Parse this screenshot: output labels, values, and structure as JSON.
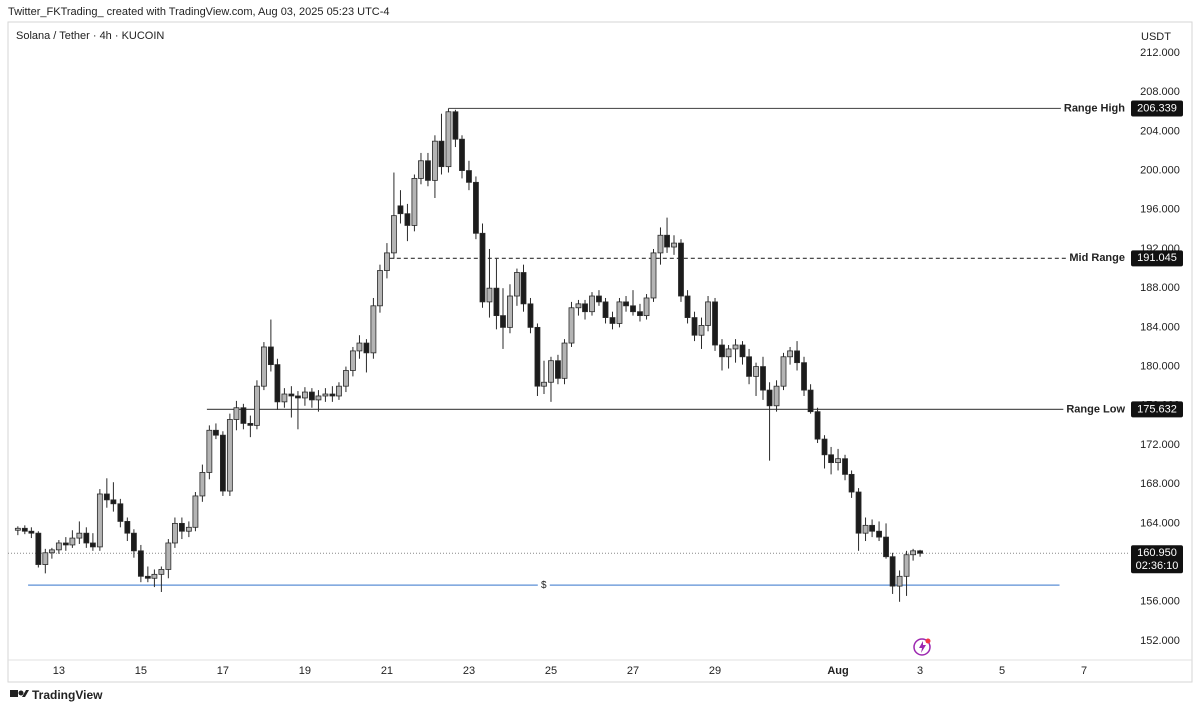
{
  "header": "Twitter_FKTrading_ created with TradingView.com, Aug 03, 2025 05:23 UTC-4",
  "footer": "TradingView",
  "chart_data": {
    "type": "candlestick",
    "title": "Solana / Tether · 4h · KUCOIN",
    "y_unit": "USDT",
    "xlim": [
      11.76,
      39.07
    ],
    "ylim": [
      150.06,
      215.16
    ],
    "grid": false,
    "up_color": "#b4b4b4",
    "down_color": "#1c1c1c",
    "wick_color": "#2a2a2a",
    "xticks": [
      13,
      15,
      17,
      19,
      21,
      23,
      25,
      27,
      29,
      {
        "value": 32,
        "label": "Aug"
      },
      {
        "value": 34,
        "label": "3"
      },
      {
        "value": 36,
        "label": "5"
      },
      {
        "value": 38,
        "label": "7"
      }
    ],
    "yticks": [
      {
        "value": 212,
        "label": "212.000"
      },
      {
        "value": 208,
        "label": "208.000"
      },
      {
        "value": 204,
        "label": "204.000"
      },
      {
        "value": 200,
        "label": "200.000"
      },
      {
        "value": 196,
        "label": "196.000"
      },
      {
        "value": 192,
        "label": "192.000"
      },
      {
        "value": 188,
        "label": "188.000"
      },
      {
        "value": 184,
        "label": "184.000"
      },
      {
        "value": 180,
        "label": "180.000"
      },
      {
        "value": 176,
        "label": "176.000"
      },
      {
        "value": 172,
        "label": "172.000"
      },
      {
        "value": 168,
        "label": "168.000"
      },
      {
        "value": 164,
        "label": "164.000"
      },
      {
        "value": 160,
        "label": "160.000"
      },
      {
        "value": 156,
        "label": "156.000"
      },
      {
        "value": 152,
        "label": "152.000"
      }
    ],
    "hlines": [
      {
        "label": "Range High",
        "value": 206.339,
        "value_label": "206.339",
        "start": 22.5,
        "style": "solid",
        "color": "#555555"
      },
      {
        "label": "Mid Range",
        "value": 191.045,
        "value_label": "191.045",
        "start": 21.07,
        "style": "dashed",
        "color": "#333333"
      },
      {
        "label": "Range Low",
        "value": 175.632,
        "value_label": "175.632",
        "start": 16.61,
        "style": "solid",
        "color": "#555555"
      },
      {
        "label": "$",
        "value": 157.7,
        "start": 12.25,
        "end": 37.4,
        "style": "solid",
        "color": "#5b8fd6"
      }
    ],
    "last_price": {
      "value": 160.95,
      "value_label": "160.950",
      "countdown": "02:36:10"
    },
    "candles": {
      "x": [
        12,
        12.17,
        12.33,
        12.5,
        12.67,
        12.83,
        13,
        13.17,
        13.33,
        13.5,
        13.67,
        13.83,
        14,
        14.17,
        14.33,
        14.5,
        14.67,
        14.83,
        15,
        15.17,
        15.33,
        15.5,
        15.67,
        15.83,
        16,
        16.17,
        16.33,
        16.5,
        16.67,
        16.83,
        17,
        17.17,
        17.33,
        17.5,
        17.67,
        17.83,
        18,
        18.17,
        18.33,
        18.5,
        18.67,
        18.83,
        19,
        19.17,
        19.33,
        19.5,
        19.67,
        19.83,
        20,
        20.17,
        20.33,
        20.5,
        20.67,
        20.83,
        21,
        21.17,
        21.33,
        21.5,
        21.67,
        21.83,
        22,
        22.17,
        22.33,
        22.5,
        22.67,
        22.83,
        23,
        23.17,
        23.33,
        23.5,
        23.67,
        23.83,
        24,
        24.17,
        24.33,
        24.5,
        24.67,
        24.83,
        25,
        25.17,
        25.33,
        25.5,
        25.67,
        25.83,
        26,
        26.17,
        26.33,
        26.5,
        26.67,
        26.83,
        27,
        27.17,
        27.33,
        27.5,
        27.67,
        27.83,
        28,
        28.17,
        28.33,
        28.5,
        28.67,
        28.83,
        29,
        29.17,
        29.33,
        29.5,
        29.67,
        29.83,
        30,
        30.17,
        30.33,
        30.5,
        30.67,
        30.83,
        31,
        31.17,
        31.33,
        31.5,
        31.67,
        31.83,
        32,
        32.17,
        32.33,
        32.5,
        32.67,
        32.83,
        33,
        33.17,
        33.33,
        33.5,
        33.67,
        33.83,
        34
      ],
      "open": [
        163.3,
        163.5,
        163.2,
        163.0,
        159.8,
        161.0,
        161.3,
        162.0,
        161.8,
        162.5,
        163.0,
        162.0,
        161.6,
        167.0,
        166.4,
        166.0,
        164.2,
        163.0,
        161.2,
        158.6,
        158.4,
        158.8,
        159.3,
        162.0,
        164.0,
        163.2,
        163.6,
        166.8,
        169.2,
        173.5,
        173.0,
        167.3,
        174.6,
        175.8,
        174.2,
        174.0,
        178.0,
        182.0,
        180.2,
        176.4,
        177.2,
        177.0,
        176.8,
        177.4,
        176.6,
        177.0,
        177.2,
        177.0,
        178.0,
        179.6,
        181.6,
        182.4,
        181.4,
        186.2,
        189.8,
        191.6,
        196.4,
        195.6,
        194.4,
        199.2,
        201.0,
        199.0,
        203.0,
        200.4,
        206.0,
        203.2,
        200.0,
        198.8,
        193.6,
        186.6,
        188.0,
        185.2,
        184.0,
        187.2,
        189.6,
        186.4,
        184.0,
        178.0,
        178.4,
        180.6,
        178.8,
        182.4,
        186.0,
        186.4,
        185.6,
        187.2,
        186.6,
        185.0,
        184.4,
        186.6,
        186.2,
        185.6,
        185.2,
        187.0,
        191.6,
        193.4,
        192.2,
        192.6,
        187.2,
        185.0,
        183.2,
        184.2,
        186.6,
        182.2,
        181.0,
        181.8,
        182.2,
        181.0,
        179.0,
        180.0,
        177.6,
        176.0,
        178.0,
        181.0,
        181.6,
        180.4,
        177.6,
        175.4,
        172.6,
        171.0,
        170.2,
        170.6,
        169.0,
        167.2,
        163.0,
        163.8,
        163.2,
        162.6,
        160.6,
        157.6,
        158.6,
        160.8,
        161.2
      ],
      "high": [
        163.7,
        163.8,
        163.6,
        163.2,
        161.4,
        161.5,
        162.3,
        162.6,
        163.3,
        164.2,
        163.6,
        163.0,
        167.5,
        168.6,
        168.2,
        166.5,
        164.6,
        163.4,
        161.8,
        159.6,
        159.3,
        159.6,
        162.4,
        164.6,
        164.6,
        164.2,
        167.2,
        170.0,
        174.0,
        174.2,
        173.4,
        175.2,
        176.5,
        176.2,
        175.0,
        178.6,
        182.5,
        184.8,
        180.8,
        177.8,
        178.0,
        177.5,
        177.9,
        177.8,
        177.6,
        177.8,
        178.0,
        178.4,
        180.0,
        182.0,
        183.2,
        182.8,
        187.0,
        190.4,
        192.6,
        199.8,
        198.0,
        196.6,
        199.6,
        201.8,
        201.8,
        203.6,
        205.8,
        206.339,
        206.2,
        203.6,
        201.0,
        199.4,
        194.6,
        192.0,
        191.0,
        188.0,
        188.4,
        190.0,
        190.4,
        187.0,
        184.4,
        180.6,
        181.0,
        181.2,
        182.8,
        186.6,
        186.8,
        186.8,
        187.6,
        187.8,
        187.0,
        185.6,
        187.0,
        187.2,
        187.8,
        186.4,
        187.4,
        192.0,
        194.2,
        195.2,
        193.4,
        193.0,
        187.8,
        185.6,
        185.0,
        187.2,
        187.0,
        182.8,
        182.2,
        182.8,
        182.6,
        181.8,
        180.4,
        181.0,
        178.4,
        178.6,
        181.4,
        182.0,
        182.6,
        181.0,
        178.2,
        175.8,
        173.0,
        171.8,
        171.6,
        171.0,
        169.4,
        167.6,
        164.6,
        164.4,
        164.2,
        164.0,
        161.0,
        159.2,
        161.2,
        161.4,
        161.3
      ],
      "low": [
        162.8,
        162.9,
        162.5,
        159.5,
        158.9,
        160.4,
        160.9,
        161.2,
        161.5,
        161.9,
        161.5,
        161.2,
        161.2,
        165.6,
        165.2,
        163.6,
        162.2,
        160.5,
        158.0,
        158.0,
        157.5,
        157.0,
        158.4,
        161.5,
        162.4,
        162.6,
        163.2,
        166.2,
        168.5,
        172.6,
        166.8,
        166.8,
        173.5,
        173.6,
        172.8,
        173.6,
        177.6,
        179.5,
        175.6,
        175.8,
        174.8,
        173.6,
        176.0,
        175.8,
        175.4,
        176.4,
        176.4,
        176.6,
        177.4,
        179.0,
        180.8,
        179.4,
        180.8,
        185.5,
        189.0,
        191.0,
        194.6,
        192.8,
        193.8,
        198.6,
        198.4,
        197.2,
        199.6,
        199.8,
        202.4,
        199.2,
        198.0,
        193.0,
        186.0,
        185.0,
        183.8,
        181.8,
        183.4,
        186.2,
        185.6,
        183.4,
        177.0,
        177.2,
        176.4,
        178.2,
        178.2,
        182.0,
        185.2,
        184.8,
        185.2,
        186.2,
        184.4,
        183.8,
        184.0,
        185.6,
        185.2,
        184.6,
        184.8,
        186.6,
        190.4,
        191.6,
        191.4,
        186.6,
        184.4,
        182.6,
        181.8,
        183.6,
        181.6,
        179.6,
        179.8,
        180.4,
        180.2,
        178.2,
        177.0,
        176.6,
        170.4,
        175.4,
        177.6,
        180.2,
        179.6,
        177.0,
        175.2,
        172.2,
        169.6,
        169.0,
        169.4,
        168.4,
        166.6,
        161.2,
        162.2,
        162.6,
        162.2,
        160.4,
        156.8,
        156.0,
        156.6,
        160.2,
        160.6
      ],
      "close": [
        163.5,
        163.2,
        163.0,
        159.8,
        161.0,
        161.3,
        162.0,
        161.8,
        162.5,
        163.0,
        162.0,
        161.6,
        167.0,
        166.4,
        166.0,
        164.2,
        163.0,
        161.2,
        158.6,
        158.4,
        158.8,
        159.3,
        162.0,
        164.0,
        163.2,
        163.6,
        166.8,
        169.2,
        173.5,
        173.0,
        167.3,
        174.6,
        175.8,
        174.2,
        174.0,
        178.0,
        182.0,
        180.2,
        176.4,
        177.2,
        177.0,
        176.8,
        177.4,
        176.6,
        177.0,
        177.2,
        177.0,
        178.0,
        179.6,
        181.6,
        182.4,
        181.4,
        186.2,
        189.8,
        191.6,
        195.4,
        195.6,
        194.4,
        199.2,
        201.0,
        199.0,
        203.0,
        200.4,
        206.0,
        203.2,
        200.0,
        198.8,
        193.6,
        186.6,
        188.0,
        185.2,
        184.0,
        187.2,
        189.6,
        186.4,
        184.0,
        178.0,
        178.4,
        180.6,
        178.8,
        182.4,
        186.0,
        186.4,
        185.6,
        187.2,
        186.6,
        185.0,
        184.4,
        186.6,
        186.2,
        185.6,
        185.2,
        187.0,
        191.6,
        193.4,
        192.2,
        192.6,
        187.2,
        185.0,
        183.2,
        184.2,
        186.6,
        182.2,
        181.0,
        181.8,
        182.2,
        181.0,
        179.0,
        180.0,
        177.6,
        176.0,
        178.0,
        181.0,
        181.6,
        180.4,
        177.6,
        175.4,
        172.6,
        171.0,
        170.2,
        170.6,
        169.0,
        167.2,
        163.0,
        163.8,
        163.2,
        162.6,
        160.6,
        157.6,
        158.6,
        160.8,
        161.2,
        160.95
      ]
    }
  }
}
